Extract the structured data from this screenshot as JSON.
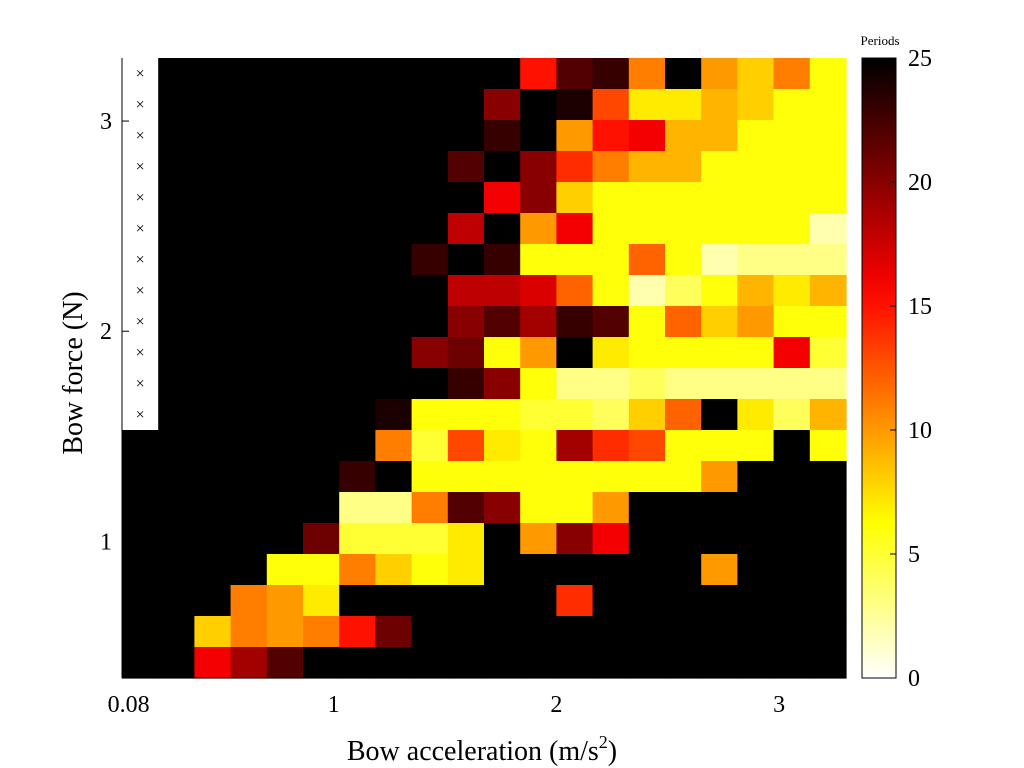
{
  "chart_data": {
    "type": "heatmap",
    "title": "",
    "xlabel_text": "Bow acceleration (m/s",
    "xlabel_sup": "2",
    "xlabel_close": ")",
    "ylabel": "Bow force (N)",
    "colorbar_label": "Periods",
    "colormap": "hot (reversed: black = high, white = low)",
    "clim": [
      0,
      25
    ],
    "colorbar_ticks": [
      "0",
      "5",
      "10",
      "15",
      "20",
      "25"
    ],
    "xlim": [
      0.05,
      3.3
    ],
    "ylim": [
      0.35,
      3.3
    ],
    "xticks": [
      {
        "value": 0.08,
        "label": "0.08"
      },
      {
        "value": 1,
        "label": "1"
      },
      {
        "value": 2,
        "label": "2"
      },
      {
        "value": 3,
        "label": "3"
      }
    ],
    "yticks": [
      {
        "value": 1,
        "label": "1"
      },
      {
        "value": 2,
        "label": "2"
      },
      {
        "value": 3,
        "label": "3"
      }
    ],
    "x": [
      0.08,
      0.245,
      0.41,
      0.575,
      0.74,
      0.905,
      1.07,
      1.235,
      1.4,
      1.565,
      1.73,
      1.895,
      2.06,
      2.225,
      2.39,
      2.555,
      2.72,
      2.885,
      3.05,
      3.215
    ],
    "y": [
      3.22,
      3.07,
      2.92,
      2.77,
      2.62,
      2.47,
      2.32,
      2.17,
      2.02,
      1.87,
      1.72,
      1.57,
      1.42,
      1.27,
      1.12,
      0.97,
      0.82,
      0.67,
      0.52,
      0.37
    ],
    "not_sampled_marker": "×",
    "not_sampled_rows": 12,
    "values": [
      [
        null,
        25,
        25,
        25,
        25,
        25,
        25,
        25,
        25,
        25,
        25,
        15,
        22,
        23,
        11,
        25,
        10,
        8,
        11,
        6
      ],
      [
        null,
        25,
        25,
        25,
        25,
        25,
        25,
        25,
        25,
        25,
        20,
        25,
        24,
        13,
        7,
        7,
        9,
        8,
        6,
        6
      ],
      [
        null,
        25,
        25,
        25,
        25,
        25,
        25,
        25,
        25,
        25,
        23,
        25,
        10,
        15,
        16,
        9,
        9,
        6,
        6,
        6
      ],
      [
        null,
        25,
        25,
        25,
        25,
        25,
        25,
        25,
        25,
        22,
        25,
        20,
        14,
        11,
        9,
        9,
        6,
        6,
        6,
        6
      ],
      [
        null,
        25,
        25,
        25,
        25,
        25,
        25,
        25,
        25,
        25,
        16,
        20,
        8,
        6,
        6,
        6,
        6,
        6,
        6,
        6
      ],
      [
        null,
        25,
        25,
        25,
        25,
        25,
        25,
        25,
        25,
        18,
        25,
        10,
        16,
        6,
        6,
        6,
        6,
        6,
        6,
        2
      ],
      [
        null,
        25,
        25,
        25,
        25,
        25,
        25,
        25,
        23,
        25,
        23,
        6,
        6,
        6,
        12,
        6,
        2,
        3,
        3,
        3
      ],
      [
        null,
        25,
        25,
        25,
        25,
        25,
        25,
        25,
        25,
        18,
        18,
        17,
        12,
        6,
        2,
        4,
        6,
        9,
        7,
        9
      ],
      [
        null,
        25,
        25,
        25,
        25,
        25,
        25,
        25,
        25,
        20,
        22,
        19,
        23,
        22,
        6,
        12,
        8,
        10,
        6,
        6
      ],
      [
        null,
        25,
        25,
        25,
        25,
        25,
        25,
        25,
        20,
        21,
        6,
        10,
        25,
        7,
        6,
        6,
        6,
        6,
        16,
        5
      ],
      [
        null,
        25,
        25,
        25,
        25,
        25,
        25,
        25,
        25,
        23,
        20,
        6,
        3,
        3,
        4,
        3,
        3,
        3,
        3,
        3
      ],
      [
        null,
        25,
        25,
        25,
        25,
        25,
        25,
        24,
        6,
        6,
        6,
        5,
        5,
        4,
        8,
        12,
        25,
        7,
        4,
        9
      ],
      [
        25,
        25,
        25,
        25,
        25,
        25,
        25,
        11,
        5,
        13,
        7,
        6,
        19,
        14,
        13,
        6,
        6,
        6,
        25,
        6
      ],
      [
        25,
        25,
        25,
        25,
        25,
        25,
        23,
        25,
        6,
        6,
        6,
        6,
        6,
        6,
        6,
        6,
        10,
        25,
        25,
        25
      ],
      [
        25,
        25,
        25,
        25,
        25,
        25,
        3,
        3,
        11,
        22,
        20,
        6,
        6,
        10,
        25,
        25,
        25,
        25,
        25,
        25
      ],
      [
        25,
        25,
        25,
        25,
        25,
        21,
        5,
        5,
        5,
        7,
        25,
        10,
        20,
        16,
        25,
        25,
        25,
        25,
        25,
        25
      ],
      [
        25,
        25,
        25,
        25,
        6,
        6,
        11,
        8,
        6,
        7,
        25,
        25,
        25,
        25,
        25,
        25,
        10,
        25,
        25,
        25
      ],
      [
        25,
        25,
        25,
        11,
        10,
        7,
        25,
        25,
        25,
        25,
        25,
        25,
        14,
        25,
        25,
        25,
        25,
        25,
        25,
        25
      ],
      [
        25,
        25,
        8,
        11,
        10,
        11,
        15,
        21,
        25,
        25,
        25,
        25,
        25,
        25,
        25,
        25,
        25,
        25,
        25,
        25
      ],
      [
        25,
        25,
        16,
        19,
        22,
        25,
        25,
        25,
        25,
        25,
        25,
        25,
        25,
        25,
        25,
        25,
        25,
        25,
        25,
        25
      ]
    ]
  }
}
